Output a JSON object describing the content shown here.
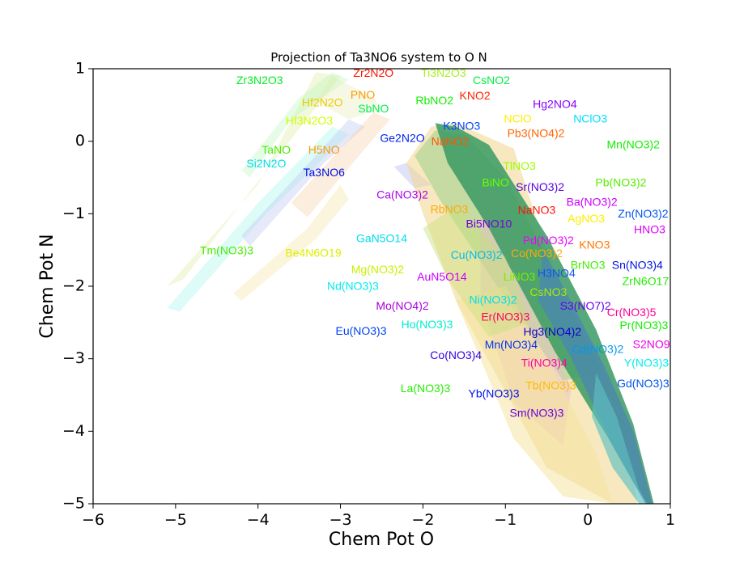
{
  "chart_data": {
    "type": "scatter",
    "title": "Projection of Ta3NO6 system to O N",
    "xlabel": "Chem Pot O",
    "ylabel": "Chem Pot N",
    "xlim": [
      -6,
      1
    ],
    "ylim": [
      -5,
      1
    ],
    "xticks": [
      {
        "v": -6,
        "t": "−6"
      },
      {
        "v": -5,
        "t": "−5"
      },
      {
        "v": -4,
        "t": "−4"
      },
      {
        "v": -3,
        "t": "−3"
      },
      {
        "v": -2,
        "t": "−2"
      },
      {
        "v": -1,
        "t": "−1"
      },
      {
        "v": 0,
        "t": "0"
      },
      {
        "v": 1,
        "t": "1"
      }
    ],
    "yticks": [
      {
        "v": -5,
        "t": "−5"
      },
      {
        "v": -4,
        "t": "−4"
      },
      {
        "v": -3,
        "t": "−3"
      },
      {
        "v": -2,
        "t": "−2"
      },
      {
        "v": -1,
        "t": "−1"
      },
      {
        "v": 0,
        "t": "0"
      },
      {
        "v": 1,
        "t": "1"
      }
    ],
    "regions": [
      {
        "color": "#d4e88a",
        "opacity": 0.3,
        "points": [
          [
            -5.1,
            -2.0
          ],
          [
            -4.0,
            -0.6
          ],
          [
            -3.3,
            0.95
          ],
          [
            -3.0,
            0.9
          ],
          [
            -4.1,
            -0.7
          ],
          [
            -4.9,
            -1.9
          ]
        ]
      },
      {
        "color": "#b8f5b8",
        "opacity": 0.35,
        "points": [
          [
            -4.2,
            -0.4
          ],
          [
            -3.5,
            0.6
          ],
          [
            -3.1,
            0.95
          ],
          [
            -2.9,
            0.85
          ],
          [
            -3.6,
            0.3
          ],
          [
            -4.1,
            -0.5
          ]
        ]
      },
      {
        "color": "#9ff5e8",
        "opacity": 0.35,
        "points": [
          [
            -5.1,
            -2.3
          ],
          [
            -4.0,
            -0.85
          ],
          [
            -3.1,
            0.2
          ],
          [
            -2.9,
            0.1
          ],
          [
            -3.9,
            -1.0
          ],
          [
            -4.95,
            -2.35
          ]
        ]
      },
      {
        "color": "#b7bff0",
        "opacity": 0.35,
        "points": [
          [
            -4.2,
            -1.3
          ],
          [
            -3.3,
            -0.2
          ],
          [
            -2.9,
            0.3
          ],
          [
            -2.7,
            0.2
          ],
          [
            -3.2,
            -0.3
          ],
          [
            -4.1,
            -1.45
          ]
        ]
      },
      {
        "color": "#f5cfa0",
        "opacity": 0.35,
        "points": [
          [
            -3.6,
            -0.85
          ],
          [
            -3.2,
            -0.35
          ],
          [
            -2.6,
            0.4
          ],
          [
            -2.4,
            0.3
          ],
          [
            -3.0,
            -0.5
          ],
          [
            -3.4,
            -1.05
          ]
        ]
      },
      {
        "color": "#f3e3a0",
        "opacity": 0.35,
        "points": [
          [
            -4.3,
            -2.1
          ],
          [
            -3.4,
            -1.2
          ],
          [
            -3.0,
            -0.6
          ],
          [
            -2.9,
            -0.8
          ],
          [
            -3.3,
            -1.35
          ],
          [
            -4.2,
            -2.2
          ]
        ]
      },
      {
        "color": "#e0e8a8",
        "opacity": 0.3,
        "points": [
          [
            -3.1,
            0.9
          ],
          [
            -2.6,
            0.6
          ],
          [
            -2.5,
            0.45
          ],
          [
            -2.9,
            0.3
          ],
          [
            -3.3,
            0.55
          ]
        ]
      },
      {
        "color": "#b9bff0",
        "opacity": 0.45,
        "points": [
          [
            -2.35,
            -0.35
          ],
          [
            -2.2,
            -0.3
          ],
          [
            -1.9,
            -0.6
          ],
          [
            -2.1,
            -0.65
          ]
        ]
      },
      {
        "color": "#f0d68a",
        "opacity": 0.55,
        "points": [
          [
            -2.2,
            -0.3
          ],
          [
            -1.9,
            0.2
          ],
          [
            -1.6,
            0.25
          ],
          [
            -0.9,
            -0.1
          ],
          [
            -0.5,
            -1.5
          ],
          [
            -0.1,
            -2.6
          ],
          [
            0.4,
            -3.6
          ],
          [
            0.6,
            -5.0
          ],
          [
            0.3,
            -5.0
          ],
          [
            -0.5,
            -4.5
          ],
          [
            -1.6,
            -2.2
          ],
          [
            -2.0,
            -1.0
          ]
        ]
      },
      {
        "color": "#9ecf8a",
        "opacity": 0.55,
        "points": [
          [
            -2.1,
            -0.2
          ],
          [
            -1.85,
            0.15
          ],
          [
            -1.5,
            0.1
          ],
          [
            -1.0,
            -0.5
          ],
          [
            -0.4,
            -1.8
          ],
          [
            0.0,
            -2.8
          ],
          [
            0.2,
            -3.2
          ],
          [
            -0.3,
            -3.3
          ],
          [
            -1.1,
            -2.0
          ],
          [
            -1.8,
            -0.8
          ]
        ]
      },
      {
        "color": "#e6b8c8",
        "opacity": 0.4,
        "points": [
          [
            -1.3,
            -0.6
          ],
          [
            -1.0,
            -0.8
          ],
          [
            -0.6,
            -2.4
          ],
          [
            -0.2,
            -3.4
          ],
          [
            -0.3,
            -4.2
          ],
          [
            -0.9,
            -3.6
          ],
          [
            -1.3,
            -2.2
          ]
        ]
      },
      {
        "color": "#3a9a64",
        "opacity": 0.85,
        "points": [
          [
            -1.85,
            0.25
          ],
          [
            -1.6,
            0.2
          ],
          [
            -1.2,
            -0.05
          ],
          [
            -0.5,
            -1.3
          ],
          [
            0.1,
            -2.6
          ],
          [
            0.55,
            -3.9
          ],
          [
            0.8,
            -5.0
          ],
          [
            0.7,
            -5.0
          ],
          [
            0.25,
            -4.1
          ],
          [
            -0.4,
            -2.9
          ],
          [
            -1.2,
            -1.2
          ],
          [
            -1.7,
            -0.3
          ]
        ]
      },
      {
        "color": "#4a85b8",
        "opacity": 0.7,
        "points": [
          [
            -0.55,
            -1.5
          ],
          [
            -0.3,
            -2.0
          ],
          [
            0.2,
            -3.1
          ],
          [
            0.55,
            -4.0
          ],
          [
            0.78,
            -5.0
          ],
          [
            0.7,
            -5.0
          ],
          [
            0.3,
            -4.2
          ],
          [
            -0.2,
            -3.0
          ],
          [
            -0.6,
            -2.2
          ]
        ]
      },
      {
        "color": "#5ec0c0",
        "opacity": 0.65,
        "points": [
          [
            0.1,
            -3.2
          ],
          [
            0.35,
            -3.8
          ],
          [
            0.62,
            -4.8
          ],
          [
            0.72,
            -5.0
          ],
          [
            0.62,
            -5.0
          ],
          [
            0.3,
            -4.5
          ],
          [
            0.05,
            -3.8
          ]
        ]
      },
      {
        "color": "#f5e4a0",
        "opacity": 0.55,
        "points": [
          [
            -1.6,
            -2.2
          ],
          [
            -1.0,
            -2.0
          ],
          [
            -0.5,
            -3.0
          ],
          [
            0.1,
            -4.3
          ],
          [
            0.3,
            -5.0
          ],
          [
            -0.3,
            -4.9
          ],
          [
            -0.9,
            -4.1
          ]
        ]
      },
      {
        "color": "#c7e07a",
        "opacity": 0.45,
        "points": [
          [
            -2.0,
            -1.2
          ],
          [
            -1.6,
            -0.9
          ],
          [
            -1.0,
            -1.6
          ],
          [
            -0.7,
            -2.5
          ],
          [
            -1.2,
            -2.7
          ],
          [
            -1.7,
            -1.9
          ]
        ]
      }
    ],
    "labels": [
      {
        "text": "Zr3N2O3",
        "x": -3.98,
        "y": 0.83,
        "color": "#00ee22"
      },
      {
        "text": "Zr2N2O",
        "x": -2.6,
        "y": 0.93,
        "color": "#ff1100"
      },
      {
        "text": "Ti3N2O3",
        "x": -1.75,
        "y": 0.93,
        "color": "#a8ef22"
      },
      {
        "text": "CsNO2",
        "x": -1.17,
        "y": 0.83,
        "color": "#00ee44"
      },
      {
        "text": "PNO",
        "x": -2.73,
        "y": 0.63,
        "color": "#ff9900"
      },
      {
        "text": "Hf2N2O",
        "x": -3.22,
        "y": 0.52,
        "color": "#eecc00"
      },
      {
        "text": "SbNO",
        "x": -2.6,
        "y": 0.44,
        "color": "#00ee55"
      },
      {
        "text": "RbNO2",
        "x": -1.86,
        "y": 0.55,
        "color": "#11ee00"
      },
      {
        "text": "KNO2",
        "x": -1.37,
        "y": 0.62,
        "color": "#ff2200"
      },
      {
        "text": "Hg2NO4",
        "x": -0.4,
        "y": 0.5,
        "color": "#8800ff"
      },
      {
        "text": "Hf3N2O3",
        "x": -3.38,
        "y": 0.27,
        "color": "#ccff00"
      },
      {
        "text": "NClO",
        "x": -0.85,
        "y": 0.3,
        "color": "#ffee00"
      },
      {
        "text": "NClO3",
        "x": 0.03,
        "y": 0.3,
        "color": "#00ddff"
      },
      {
        "text": "K3NO3",
        "x": -1.53,
        "y": 0.2,
        "color": "#0044ff"
      },
      {
        "text": "Pb3(NO4)2",
        "x": -0.63,
        "y": 0.1,
        "color": "#ff6600"
      },
      {
        "text": "Ge2N2O",
        "x": -2.25,
        "y": 0.03,
        "color": "#0022ee"
      },
      {
        "text": "NaNO2",
        "x": -1.67,
        "y": -0.01,
        "color": "#ff5500"
      },
      {
        "text": "Mn(NO3)2",
        "x": 0.55,
        "y": -0.06,
        "color": "#11ee00"
      },
      {
        "text": "TaNO",
        "x": -3.78,
        "y": -0.13,
        "color": "#44ee00"
      },
      {
        "text": "H5NO",
        "x": -3.2,
        "y": -0.13,
        "color": "#ff9900"
      },
      {
        "text": "Si2N2O",
        "x": -3.9,
        "y": -0.32,
        "color": "#00ddee"
      },
      {
        "text": "TlNO3",
        "x": -0.83,
        "y": -0.35,
        "color": "#99ff00"
      },
      {
        "text": "Ta3NO6",
        "x": -3.2,
        "y": -0.44,
        "color": "#0011dd"
      },
      {
        "text": "BiNO",
        "x": -1.12,
        "y": -0.58,
        "color": "#66ff00"
      },
      {
        "text": "Sr(NO3)2",
        "x": -0.58,
        "y": -0.64,
        "color": "#5500dd"
      },
      {
        "text": "Pb(NO3)2",
        "x": 0.4,
        "y": -0.58,
        "color": "#55ee00"
      },
      {
        "text": "Ca(NO3)2",
        "x": -2.25,
        "y": -0.75,
        "color": "#aa00ee"
      },
      {
        "text": "Ba(NO3)2",
        "x": 0.05,
        "y": -0.85,
        "color": "#cc00ff"
      },
      {
        "text": "RbNO3",
        "x": -1.68,
        "y": -0.95,
        "color": "#ffaa00"
      },
      {
        "text": "NaNO3",
        "x": -0.62,
        "y": -0.96,
        "color": "#ff1100"
      },
      {
        "text": "Zn(NO3)2",
        "x": 0.67,
        "y": -1.01,
        "color": "#0055ee"
      },
      {
        "text": "AgNO3",
        "x": -0.02,
        "y": -1.08,
        "color": "#ffee00"
      },
      {
        "text": "Bi5NO10",
        "x": -1.2,
        "y": -1.15,
        "color": "#7700dd"
      },
      {
        "text": "HNO3",
        "x": 0.75,
        "y": -1.23,
        "color": "#dd00ff"
      },
      {
        "text": "GaN5O14",
        "x": -2.5,
        "y": -1.35,
        "color": "#00ddee"
      },
      {
        "text": "Pd(NO3)2",
        "x": -0.48,
        "y": -1.38,
        "color": "#ee00ff"
      },
      {
        "text": "KNO3",
        "x": 0.08,
        "y": -1.44,
        "color": "#ff7700"
      },
      {
        "text": "Tm(NO3)3",
        "x": -4.38,
        "y": -1.52,
        "color": "#44ee00"
      },
      {
        "text": "Be4N6O19",
        "x": -3.33,
        "y": -1.55,
        "color": "#ddee00"
      },
      {
        "text": "Cu(NO3)2",
        "x": -1.35,
        "y": -1.58,
        "color": "#00bbee"
      },
      {
        "text": "Co(NO3)2",
        "x": -0.62,
        "y": -1.56,
        "color": "#ffaa00"
      },
      {
        "text": "Sn(NO3)4",
        "x": 0.6,
        "y": -1.72,
        "color": "#0011dd"
      },
      {
        "text": "BrNO3",
        "x": 0.0,
        "y": -1.72,
        "color": "#44ee00"
      },
      {
        "text": "Mg(NO3)2",
        "x": -2.55,
        "y": -1.78,
        "color": "#ccee00"
      },
      {
        "text": "H3NO4",
        "x": -0.38,
        "y": -1.83,
        "color": "#1155ee"
      },
      {
        "text": "AuN5O14",
        "x": -1.77,
        "y": -1.88,
        "color": "#cc00ff"
      },
      {
        "text": "LiNO3",
        "x": -0.83,
        "y": -1.88,
        "color": "#77ee00"
      },
      {
        "text": "ZrN6O17",
        "x": 0.7,
        "y": -1.94,
        "color": "#22ee00"
      },
      {
        "text": "Nd(NO3)3",
        "x": -2.85,
        "y": -2.01,
        "color": "#00eeee"
      },
      {
        "text": "CsNO3",
        "x": -0.48,
        "y": -2.09,
        "color": "#aaee00"
      },
      {
        "text": "Ni(NO3)2",
        "x": -1.15,
        "y": -2.2,
        "color": "#00ddee"
      },
      {
        "text": "S3(NO7)2",
        "x": -0.03,
        "y": -2.28,
        "color": "#6600ee"
      },
      {
        "text": "Mo(NO4)2",
        "x": -2.25,
        "y": -2.28,
        "color": "#aa00dd"
      },
      {
        "text": "Cr(NO3)5",
        "x": 0.53,
        "y": -2.37,
        "color": "#ff0099"
      },
      {
        "text": "Er(NO3)3",
        "x": -1.0,
        "y": -2.43,
        "color": "#ff0066"
      },
      {
        "text": "Ho(NO3)3",
        "x": -1.95,
        "y": -2.54,
        "color": "#00eecc"
      },
      {
        "text": "Pr(NO3)3",
        "x": 0.68,
        "y": -2.55,
        "color": "#11ee00"
      },
      {
        "text": "Eu(NO3)3",
        "x": -2.75,
        "y": -2.63,
        "color": "#0044ee"
      },
      {
        "text": "Hg3(NO4)2",
        "x": -0.43,
        "y": -2.64,
        "color": "#1100cc"
      },
      {
        "text": "S2NO9",
        "x": 0.77,
        "y": -2.81,
        "color": "#ee00ee"
      },
      {
        "text": "Mn(NO3)4",
        "x": -0.93,
        "y": -2.82,
        "color": "#0033ee"
      },
      {
        "text": "Cd(NO3)2",
        "x": 0.12,
        "y": -2.88,
        "color": "#0099ee"
      },
      {
        "text": "Co(NO3)4",
        "x": -1.6,
        "y": -2.96,
        "color": "#3300dd"
      },
      {
        "text": "Ti(NO3)4",
        "x": -0.53,
        "y": -3.07,
        "color": "#ff00aa"
      },
      {
        "text": "Y(NO3)3",
        "x": 0.71,
        "y": -3.07,
        "color": "#00eeee"
      },
      {
        "text": "Tb(NO3)3",
        "x": -0.45,
        "y": -3.38,
        "color": "#ffbb00"
      },
      {
        "text": "Gd(NO3)3",
        "x": 0.67,
        "y": -3.35,
        "color": "#0055ee"
      },
      {
        "text": "La(NO3)3",
        "x": -1.97,
        "y": -3.42,
        "color": "#22ee00"
      },
      {
        "text": "Yb(NO3)3",
        "x": -1.14,
        "y": -3.49,
        "color": "#0011ee"
      },
      {
        "text": "Sm(NO3)3",
        "x": -0.62,
        "y": -3.76,
        "color": "#6600dd"
      }
    ]
  }
}
